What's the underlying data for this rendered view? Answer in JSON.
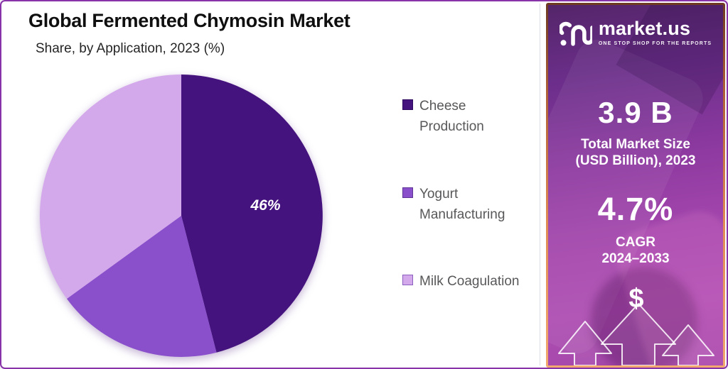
{
  "chart": {
    "title": "Global Fermented Chymosin Market",
    "subtitle": "Share, by Application, 2023 (%)"
  },
  "chart_data": {
    "type": "pie",
    "title": "Global Fermented Chymosin Market",
    "subtitle": "Share, by Application, 2023 (%)",
    "labels": [
      "Cheese Production",
      "Yogurt Manufacturing",
      "Milk Coagulation"
    ],
    "values": [
      46,
      19,
      35
    ],
    "shown_labels": [
      "46%",
      "",
      ""
    ],
    "colors": [
      "#45137e",
      "#8a50cc",
      "#d4a9ec"
    ],
    "swatch_borders": [
      "#2e0a5e",
      "#5e3494",
      "#8a5fc0"
    ],
    "start_angle": "top",
    "direction": "clockwise",
    "legend_position": "right"
  },
  "legend": {
    "items": [
      {
        "line1": "Cheese",
        "line2": "Production"
      },
      {
        "line1": "Yogurt",
        "line2": "Manufacturing"
      },
      {
        "line1": "Milk Coagulation",
        "line2": ""
      }
    ]
  },
  "side_panel": {
    "brand": {
      "name": "market.us",
      "tagline": "ONE STOP SHOP FOR THE REPORTS"
    },
    "stats": [
      {
        "value": "3.9 B",
        "caption_line1": "Total Market Size",
        "caption_line2": "(USD Billion), 2023"
      },
      {
        "value": "4.7%",
        "caption_line1": "CAGR",
        "caption_line2": "2024–2033"
      }
    ],
    "dollar_symbol": "$",
    "colors": {
      "panel_gradient_top": "#542569",
      "panel_gradient_bottom": "#ae4db2",
      "panel_border": "#e08a54",
      "frame_border": "#8833a8"
    }
  }
}
